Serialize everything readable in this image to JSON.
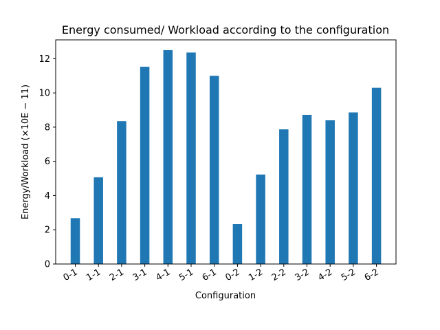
{
  "chart_data": {
    "type": "bar",
    "title": "Energy consumed/ Workload according to the configuration",
    "xlabel": "Configuration",
    "ylabel": "Energy/Workload (×10E − 11)",
    "categories": [
      "0-1",
      "1-1",
      "2-1",
      "3-1",
      "4-1",
      "5-1",
      "6-1",
      "0-2",
      "1-2",
      "2-2",
      "3-2",
      "4-2",
      "5-2",
      "6-2"
    ],
    "values": [
      2.68,
      5.07,
      8.35,
      11.53,
      12.5,
      12.36,
      11.0,
      2.33,
      5.23,
      7.87,
      8.72,
      8.4,
      8.86,
      10.3
    ],
    "ylim": [
      0,
      13.1
    ],
    "yticks": [
      0,
      2,
      4,
      6,
      8,
      10,
      12
    ],
    "grid": false,
    "bar_color": "#1f77b4"
  }
}
